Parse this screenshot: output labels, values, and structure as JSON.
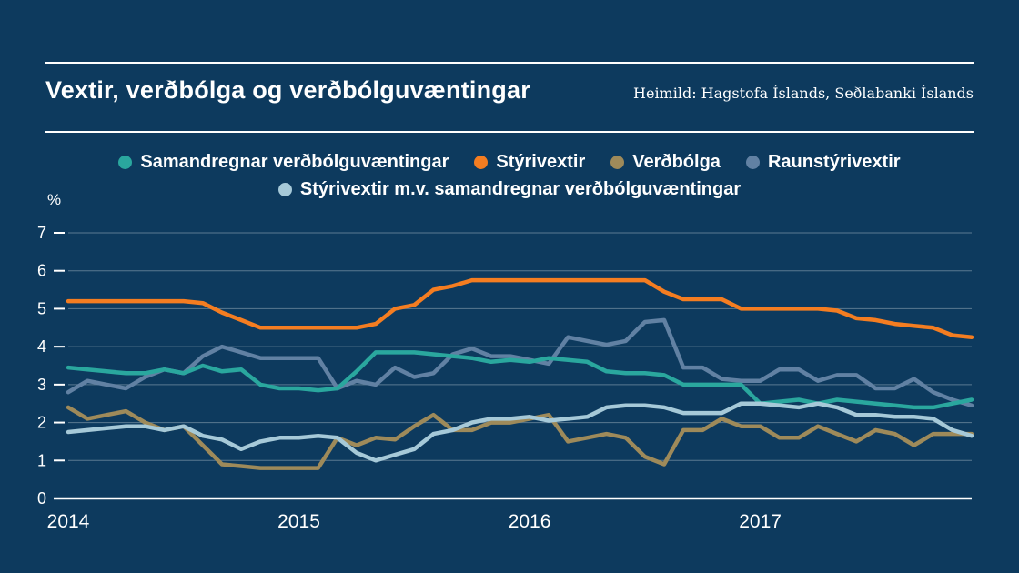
{
  "page": {
    "background": "#0d3a5e",
    "text_color": "#ffffff"
  },
  "header": {
    "title": "Vextir, verðbólga og verðbólguvæntingar",
    "source": "Heimild: Hagstofa Íslands, Seðlabanki Íslands"
  },
  "chart_data": {
    "type": "line",
    "title": "Vextir, verðbólga og verðbólguvæntingar",
    "ylabel": "%",
    "xlabel": "",
    "ylim": [
      0,
      7
    ],
    "yticks": [
      0,
      1,
      2,
      3,
      4,
      5,
      6,
      7
    ],
    "xticks": [
      2014,
      2015,
      2016,
      2017
    ],
    "x_range": [
      2014,
      2017.9167
    ],
    "x_unit": "monthly",
    "grid": "horizontal",
    "legend_position": "top-center",
    "series": [
      {
        "name": "Samandregnar verðbólguvæntingar",
        "color": "#2aa79e",
        "values": [
          3.45,
          3.4,
          3.35,
          3.3,
          3.3,
          3.4,
          3.3,
          3.5,
          3.35,
          3.4,
          3.0,
          2.9,
          2.9,
          2.85,
          2.9,
          3.35,
          3.85,
          3.85,
          3.85,
          3.8,
          3.75,
          3.7,
          3.6,
          3.65,
          3.6,
          3.7,
          3.65,
          3.6,
          3.35,
          3.3,
          3.3,
          3.25,
          3.0,
          3.0,
          3.0,
          3.0,
          2.5,
          2.55,
          2.6,
          2.5,
          2.6,
          2.55,
          2.5,
          2.45,
          2.4,
          2.4,
          2.5,
          2.6
        ]
      },
      {
        "name": "Stýrivextir",
        "color": "#f47d21",
        "values": [
          5.2,
          5.2,
          5.2,
          5.2,
          5.2,
          5.2,
          5.2,
          5.15,
          4.9,
          4.7,
          4.5,
          4.5,
          4.5,
          4.5,
          4.5,
          4.5,
          4.6,
          5.0,
          5.1,
          5.5,
          5.6,
          5.75,
          5.75,
          5.75,
          5.75,
          5.75,
          5.75,
          5.75,
          5.75,
          5.75,
          5.75,
          5.45,
          5.25,
          5.25,
          5.25,
          5.0,
          5.0,
          5.0,
          5.0,
          5.0,
          4.95,
          4.75,
          4.7,
          4.6,
          4.55,
          4.5,
          4.3,
          4.25
        ]
      },
      {
        "name": "Verðbólga",
        "color": "#9e8a5a",
        "values": [
          2.4,
          2.1,
          2.2,
          2.3,
          2.0,
          1.8,
          1.9,
          1.4,
          0.9,
          0.85,
          0.8,
          0.8,
          0.8,
          0.8,
          1.6,
          1.4,
          1.6,
          1.55,
          1.9,
          2.2,
          1.8,
          1.8,
          2.0,
          2.0,
          2.1,
          2.2,
          1.5,
          1.6,
          1.7,
          1.6,
          1.1,
          0.9,
          1.8,
          1.8,
          2.1,
          1.9,
          1.9,
          1.6,
          1.6,
          1.9,
          1.7,
          1.5,
          1.8,
          1.7,
          1.4,
          1.7,
          1.7,
          1.7
        ]
      },
      {
        "name": "Raunstýrivextir",
        "color": "#6181a3",
        "values": [
          2.8,
          3.1,
          3.0,
          2.9,
          3.2,
          3.4,
          3.3,
          3.75,
          4.0,
          3.85,
          3.7,
          3.7,
          3.7,
          3.7,
          2.9,
          3.1,
          3.0,
          3.45,
          3.2,
          3.3,
          3.8,
          3.95,
          3.75,
          3.75,
          3.65,
          3.55,
          4.25,
          4.15,
          4.05,
          4.15,
          4.65,
          4.7,
          3.45,
          3.45,
          3.15,
          3.1,
          3.1,
          3.4,
          3.4,
          3.1,
          3.25,
          3.25,
          2.9,
          2.9,
          3.15,
          2.8,
          2.6,
          2.45
        ]
      },
      {
        "name": "Stýrivextir m.v. samandregnar verðbólguvæntingar",
        "color": "#a6c9d8",
        "values": [
          1.75,
          1.8,
          1.85,
          1.9,
          1.9,
          1.8,
          1.9,
          1.65,
          1.55,
          1.3,
          1.5,
          1.6,
          1.6,
          1.65,
          1.6,
          1.2,
          1.0,
          1.15,
          1.3,
          1.7,
          1.8,
          2.0,
          2.1,
          2.1,
          2.15,
          2.05,
          2.1,
          2.15,
          2.4,
          2.45,
          2.45,
          2.4,
          2.25,
          2.25,
          2.25,
          2.5,
          2.5,
          2.45,
          2.4,
          2.5,
          2.4,
          2.2,
          2.2,
          2.15,
          2.15,
          2.1,
          1.8,
          1.65
        ]
      }
    ],
    "legend_rows": [
      [
        0,
        1,
        2,
        3
      ],
      [
        4
      ]
    ],
    "draw_order": [
      2,
      3,
      0,
      4,
      1
    ]
  }
}
